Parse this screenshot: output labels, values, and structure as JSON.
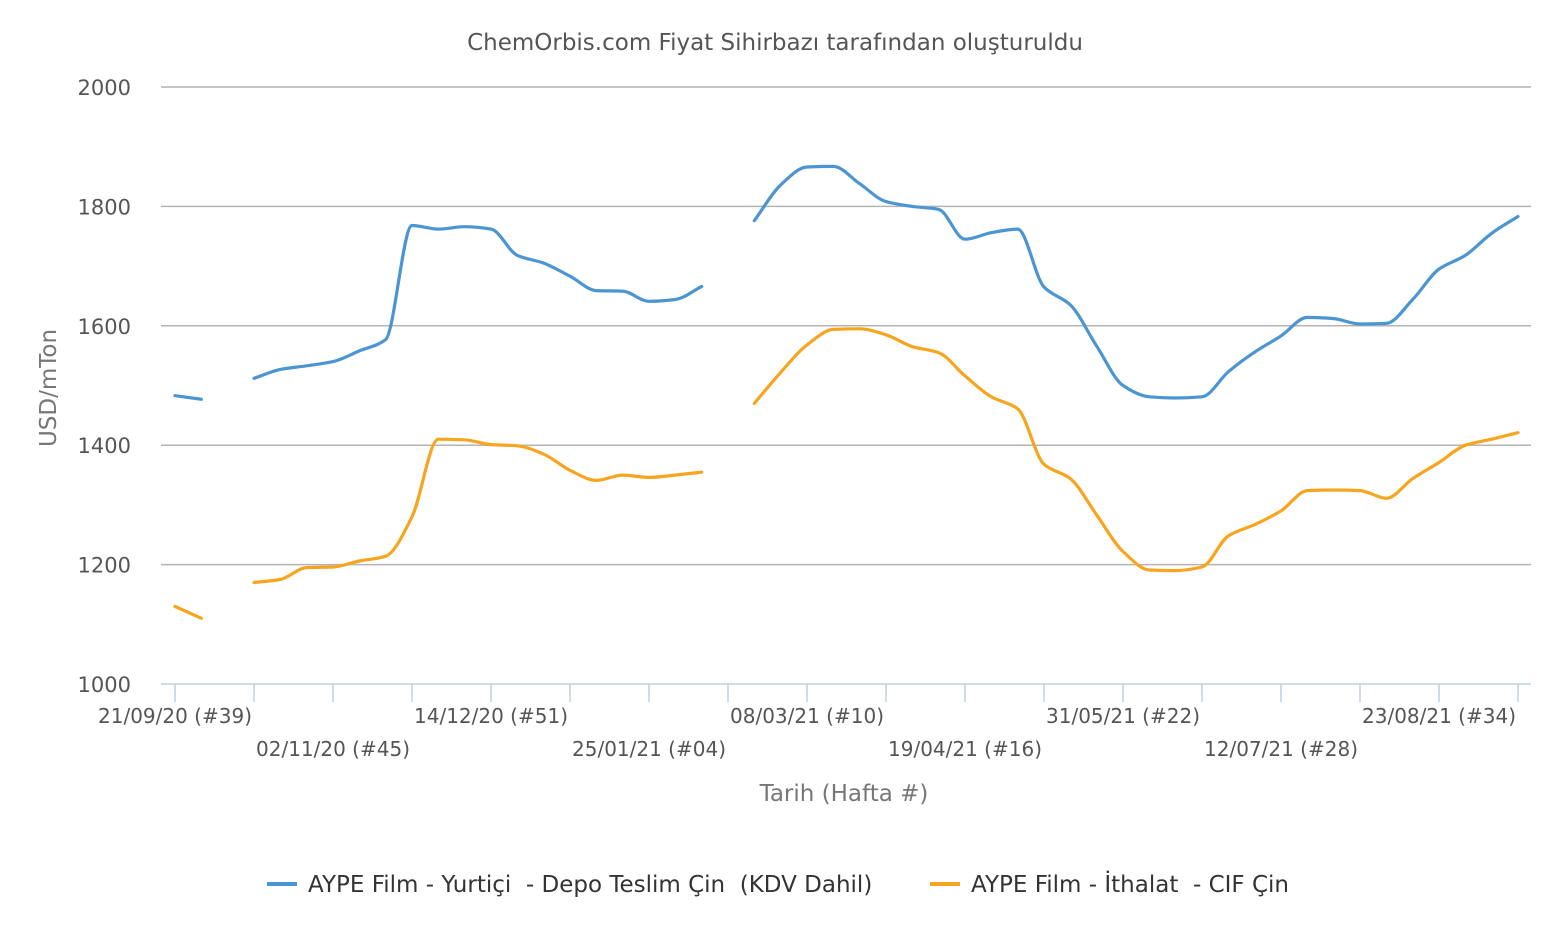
{
  "chart_data": {
    "type": "line",
    "subtitle": "ChemOrbis.com Fiyat Sihirbazı tarafından oluşturuldu",
    "xlabel": "Tarih (Hafta #)",
    "ylabel": "USD/mTon",
    "ylim": [
      1000,
      2000
    ],
    "yticks": [
      1000,
      1200,
      1400,
      1600,
      1800,
      2000
    ],
    "grid": true,
    "legend_position": "bottom",
    "x_tick_labels": [
      {
        "week_index": 0,
        "label": "21/09/20 (#39)"
      },
      {
        "week_index": 6,
        "label": "02/11/20 (#45)"
      },
      {
        "week_index": 12,
        "label": "14/12/20 (#51)"
      },
      {
        "week_index": 18,
        "label": "25/01/21 (#04)"
      },
      {
        "week_index": 24,
        "label": "08/03/21 (#10)"
      },
      {
        "week_index": 30,
        "label": "19/04/21 (#16)"
      },
      {
        "week_index": 36,
        "label": "31/05/21 (#22)"
      },
      {
        "week_index": 42,
        "label": "12/07/21 (#28)"
      },
      {
        "week_index": 48,
        "label": "23/08/21 (#34)"
      }
    ],
    "x_range_weeks": [
      0,
      51
    ],
    "series": [
      {
        "name": "AYPE Film - Yurtiçi  - Depo Teslim Çin  (KDV Dahil)",
        "color": "#4b96d2",
        "points": [
          [
            0,
            1483
          ],
          [
            1,
            1477
          ],
          [
            3,
            1512
          ],
          [
            4,
            1527
          ],
          [
            5,
            1533
          ],
          [
            6,
            1540
          ],
          [
            7,
            1558
          ],
          [
            8,
            1577
          ],
          [
            9,
            1768
          ],
          [
            10,
            1762
          ],
          [
            11,
            1766
          ],
          [
            12,
            1762
          ],
          [
            13,
            1718
          ],
          [
            14,
            1705
          ],
          [
            15,
            1683
          ],
          [
            16,
            1659
          ],
          [
            17,
            1658
          ],
          [
            18,
            1641
          ],
          [
            19,
            1644
          ],
          [
            20,
            1666
          ],
          [
            22,
            1776
          ],
          [
            23,
            1836
          ],
          [
            24,
            1866
          ],
          [
            25,
            1867
          ],
          [
            26,
            1838
          ],
          [
            27,
            1808
          ],
          [
            28,
            1800
          ],
          [
            29,
            1795
          ],
          [
            30,
            1745
          ],
          [
            31,
            1756
          ],
          [
            32,
            1762
          ],
          [
            33,
            1665
          ],
          [
            34,
            1635
          ],
          [
            35,
            1566
          ],
          [
            36,
            1500
          ],
          [
            37,
            1481
          ],
          [
            38,
            1479
          ],
          [
            39,
            1481
          ],
          [
            40,
            1523
          ],
          [
            41,
            1556
          ],
          [
            42,
            1583
          ],
          [
            43,
            1614
          ],
          [
            44,
            1612
          ],
          [
            45,
            1603
          ],
          [
            46,
            1604
          ],
          [
            47,
            1644
          ],
          [
            48,
            1695
          ],
          [
            49,
            1718
          ],
          [
            50,
            1755
          ],
          [
            51,
            1783
          ]
        ]
      },
      {
        "name": "AYPE Film - İthalat  - CIF Çin",
        "color": "#f7a51f",
        "points": [
          [
            0,
            1130
          ],
          [
            1,
            1110
          ],
          [
            3,
            1170
          ],
          [
            4,
            1175
          ],
          [
            5,
            1195
          ],
          [
            6,
            1196
          ],
          [
            7,
            1206
          ],
          [
            8,
            1214
          ],
          [
            9,
            1280
          ],
          [
            10,
            1410
          ],
          [
            11,
            1409
          ],
          [
            12,
            1401
          ],
          [
            13,
            1399
          ],
          [
            14,
            1385
          ],
          [
            15,
            1358
          ],
          [
            16,
            1341
          ],
          [
            17,
            1350
          ],
          [
            18,
            1346
          ],
          [
            19,
            1350
          ],
          [
            20,
            1355
          ],
          [
            22,
            1470
          ],
          [
            23,
            1522
          ],
          [
            24,
            1568
          ],
          [
            25,
            1594
          ],
          [
            26,
            1595
          ],
          [
            27,
            1585
          ],
          [
            28,
            1565
          ],
          [
            29,
            1555
          ],
          [
            30,
            1516
          ],
          [
            31,
            1481
          ],
          [
            32,
            1461
          ],
          [
            33,
            1368
          ],
          [
            34,
            1344
          ],
          [
            35,
            1283
          ],
          [
            36,
            1222
          ],
          [
            37,
            1191
          ],
          [
            38,
            1190
          ],
          [
            39,
            1196
          ],
          [
            40,
            1248
          ],
          [
            41,
            1267
          ],
          [
            42,
            1290
          ],
          [
            43,
            1324
          ],
          [
            44,
            1325
          ],
          [
            45,
            1324
          ],
          [
            46,
            1311
          ],
          [
            47,
            1344
          ],
          [
            48,
            1371
          ],
          [
            49,
            1400
          ],
          [
            50,
            1410
          ],
          [
            51,
            1421
          ]
        ]
      }
    ]
  }
}
